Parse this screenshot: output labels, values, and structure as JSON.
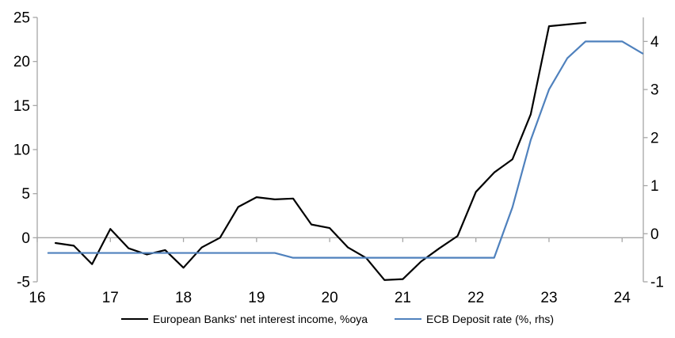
{
  "chart_data": {
    "type": "line",
    "title": "",
    "x_axis": {
      "range": [
        16,
        24.29
      ],
      "ticks": [
        16,
        17,
        18,
        19,
        20,
        21,
        22,
        23,
        24
      ]
    },
    "left_axis": {
      "range": [
        -5,
        25
      ],
      "ticks": [
        -5,
        0,
        5,
        10,
        15,
        20,
        25
      ]
    },
    "right_axis": {
      "range": [
        -1,
        4.5
      ],
      "ticks": [
        -1,
        0,
        1,
        2,
        3,
        4
      ]
    },
    "grid": "zero-line-only",
    "legend_position": "bottom",
    "colors": {
      "axis": "#a6a6a6",
      "zero_line": "#a6a6a6",
      "text": "#000000"
    },
    "series": [
      {
        "name": "European Banks' net interest income, %oya",
        "axis": "left",
        "color": "#000000",
        "x_start": 16.25,
        "x_step": 0.25,
        "values": [
          -0.6,
          -0.9,
          -3.0,
          1.0,
          -1.2,
          -1.9,
          -1.4,
          -3.4,
          -1.1,
          0.0,
          3.5,
          4.6,
          4.35,
          4.45,
          1.5,
          1.1,
          -1.1,
          -2.3,
          -4.8,
          -4.7,
          -2.7,
          -1.2,
          0.2,
          5.2,
          7.4,
          8.9,
          14.0,
          24.0,
          24.2,
          24.4
        ]
      },
      {
        "name": "ECB Deposit rate (%, rhs)",
        "axis": "right",
        "color": "#4f81bd",
        "points": [
          [
            16.15,
            -0.4
          ],
          [
            19.25,
            -0.4
          ],
          [
            19.5,
            -0.5
          ],
          [
            22.25,
            -0.5
          ],
          [
            22.5,
            0.55
          ],
          [
            22.75,
            1.95
          ],
          [
            23.0,
            3.0
          ],
          [
            23.25,
            3.65
          ],
          [
            23.5,
            4.0
          ],
          [
            24.0,
            4.0
          ],
          [
            24.28,
            3.75
          ]
        ]
      }
    ]
  }
}
